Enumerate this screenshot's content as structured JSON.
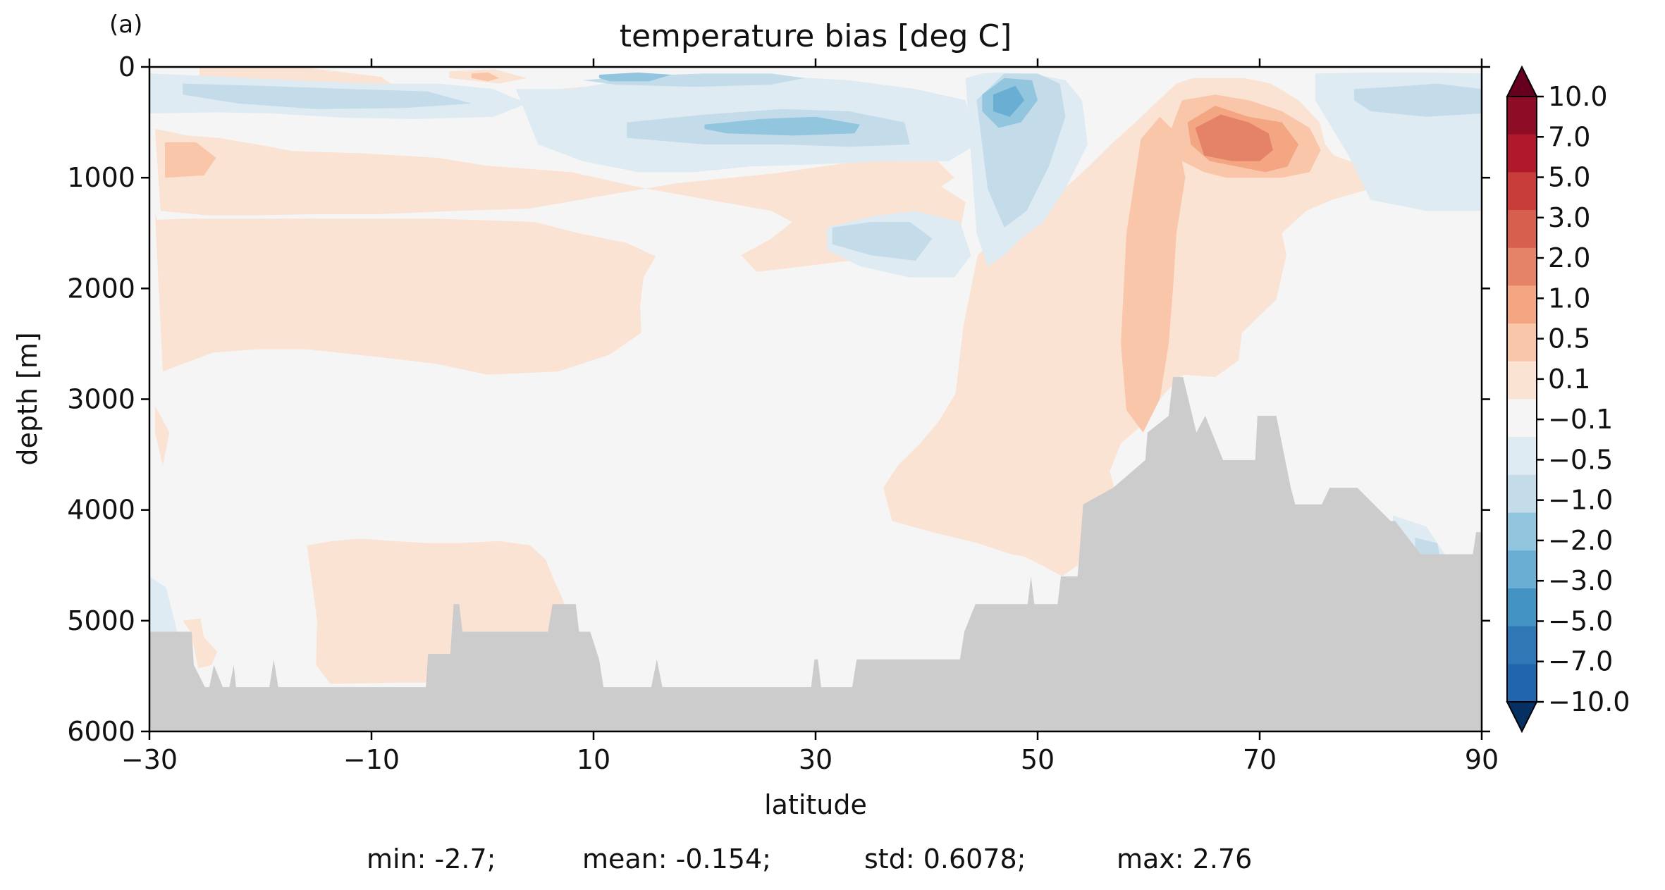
{
  "panel_label": "(a)",
  "chart_data": {
    "type": "heatmap",
    "title": "temperature bias [deg C]",
    "xlabel": "latitude",
    "ylabel": "depth [m]",
    "xlim": [
      -30,
      90
    ],
    "ylim": [
      6000,
      0
    ],
    "xticks": [
      -30,
      -10,
      10,
      30,
      50,
      70,
      90
    ],
    "xtick_labels": [
      "−30",
      "−10",
      "10",
      "30",
      "50",
      "70",
      "90"
    ],
    "yticks": [
      0,
      1000,
      2000,
      3000,
      4000,
      5000,
      6000
    ],
    "ytick_labels": [
      "0",
      "1000",
      "2000",
      "3000",
      "4000",
      "5000",
      "6000"
    ],
    "colorbar": {
      "extend": "both",
      "levels": [
        -10,
        -7,
        -5,
        -3,
        -2,
        -1,
        -0.5,
        -0.1,
        0.1,
        0.5,
        1,
        2,
        3,
        5,
        7,
        10
      ],
      "labels": [
        "10.0",
        "7.0",
        "5.0",
        "3.0",
        "2.0",
        "1.0",
        "0.5",
        "0.1",
        "−0.1",
        "−0.5",
        "−1.0",
        "−2.0",
        "−3.0",
        "−5.0",
        "−7.0",
        "−10.0"
      ],
      "colors_top_to_bottom": [
        "#67001f",
        "#8e0d26",
        "#b2182b",
        "#c83c3a",
        "#d6604d",
        "#e58368",
        "#f4a582",
        "#f9c6a9",
        "#fbe3d4",
        "#f5f5f5",
        "#deebf2",
        "#c4dbea",
        "#92c5de",
        "#6aaed3",
        "#4393c3",
        "#2f78b5",
        "#2166ac",
        "#053061"
      ],
      "land_color": "#cccccc"
    },
    "bias_regions": [
      {
        "level": 0.3,
        "lat": [
          -29.5,
          -28.4,
          -26.6,
          -23.8,
          -20.3,
          -17.1,
          -10.8,
          -4.0,
          0.2,
          8.0,
          14.8,
          20.4,
          26.0,
          27.9,
          26.0,
          23.3,
          24.7,
          37.3,
          42.9,
          43.5,
          40.1,
          40.7,
          38.8,
          35.7,
          33.2,
          26.4,
          17.5,
          10.5,
          4.1,
          -2.5,
          -9.3,
          -15.1,
          -20.4,
          -24.8,
          -29.0
        ],
        "depth": [
          560,
          580,
          620,
          640,
          700,
          760,
          780,
          820,
          890,
          950,
          1100,
          1200,
          1300,
          1400,
          1550,
          1700,
          1850,
          1700,
          1550,
          1220,
          1000,
          880,
          860,
          840,
          860,
          960,
          1050,
          1170,
          1280,
          1300,
          1330,
          1330,
          1340,
          1340,
          1300
        ]
      },
      {
        "level": 0.3,
        "lat": [
          -29.5,
          -29.3,
          -26.7,
          -21.2,
          -15.5,
          -10.8,
          -4.7,
          -0.9,
          4.7,
          8.6,
          13.0,
          15.6,
          14.5,
          14.2,
          14.3,
          11.4,
          6.8,
          0.5,
          -4.2,
          -9.3,
          -15.8,
          -20.4,
          -24.3,
          -28.8
        ],
        "depth": [
          1320,
          1380,
          1370,
          1370,
          1370,
          1370,
          1370,
          1380,
          1400,
          1500,
          1590,
          1710,
          1900,
          2150,
          2400,
          2600,
          2750,
          2780,
          2680,
          2620,
          2550,
          2550,
          2580,
          2750
        ]
      },
      {
        "level": 0.3,
        "lat": [
          44.6,
          46.6,
          49.1,
          52.4,
          54.6,
          56.6,
          58.8,
          60.9,
          62.5,
          64.0,
          66.6,
          68.6,
          71.0,
          73.5,
          75.4,
          75.9,
          76.7,
          78.1,
          80.0,
          80.6,
          80.0,
          76.5,
          74.2,
          72.0,
          72.4,
          71.5,
          68.4,
          68.1,
          66.0,
          63.2,
          62.8,
          61.0,
          59.8,
          57.5,
          56.5,
          56.9,
          56.0,
          54.9,
          53.9,
          53.6,
          52.2,
          50.4,
          48.8,
          47.6,
          44.6,
          40.5,
          36.9,
          36.1,
          37.4,
          39.4,
          41.1,
          42.6,
          43.3,
          44.6
        ],
        "depth": [
          1700,
          1500,
          1300,
          1100,
          900,
          700,
          500,
          300,
          150,
          100,
          100,
          100,
          150,
          300,
          500,
          700,
          800,
          850,
          900,
          1000,
          1100,
          1200,
          1300,
          1500,
          1700,
          2100,
          2400,
          2650,
          2800,
          2780,
          2800,
          3000,
          3200,
          3400,
          3650,
          3800,
          4100,
          4200,
          4350,
          4500,
          4600,
          4500,
          4420,
          4400,
          4300,
          4200,
          4100,
          3800,
          3600,
          3400,
          3200,
          2950,
          2350,
          1700
        ]
      },
      {
        "level": 0.3,
        "lat": [
          -15.8,
          -13.5,
          -11.0,
          -8.1,
          -4.9,
          -2.1,
          1.5,
          4.3,
          5.7,
          6.3,
          7.2,
          8.1,
          8.0,
          -1.8,
          -8.0,
          -13.7,
          -15.0,
          -14.9,
          -15.8
        ],
        "depth": [
          4320,
          4280,
          4260,
          4280,
          4300,
          4300,
          4280,
          4320,
          4450,
          4600,
          4800,
          5100,
          5560,
          5560,
          5560,
          5570,
          5400,
          5000,
          4320
        ]
      },
      {
        "level": 0.3,
        "lat": [
          -27.0,
          -25.4,
          -25.1,
          -23.9,
          -24.4,
          -25.6,
          -26.3
        ],
        "depth": [
          5000,
          4980,
          5150,
          5280,
          5400,
          5430,
          5100
        ]
      },
      {
        "level": 0.3,
        "lat": [
          -29.5,
          -28.2,
          -28.8,
          -29.5
        ],
        "depth": [
          3060,
          3300,
          3600,
          3300
        ]
      },
      {
        "level": 0.3,
        "lat": [
          -25.5,
          -20.8,
          -16.3,
          -13.2,
          -9.1,
          -7.6,
          -14.2,
          -20.4,
          -25.5
        ],
        "depth": [
          0,
          0,
          0,
          40,
          90,
          200,
          210,
          180,
          120
        ]
      },
      {
        "level": 0.3,
        "lat": [
          -29.2,
          -25.0,
          -23.6,
          -26.2,
          -29.2
        ],
        "depth": [
          650,
          650,
          780,
          990,
          1000
        ]
      },
      {
        "level": 0.75,
        "lat": [
          -28.6,
          -25.8,
          -24.0,
          -25.1,
          -28.6
        ],
        "depth": [
          680,
          680,
          820,
          980,
          1000
        ]
      },
      {
        "level": 0.75,
        "lat": [
          59.3,
          61.0,
          62.5,
          63.3,
          62.5,
          62.2,
          61.8,
          61.0,
          59.5,
          58.0,
          57.5,
          58.0,
          59.3
        ],
        "depth": [
          650,
          450,
          600,
          1000,
          1500,
          2000,
          2500,
          3000,
          3300,
          3100,
          2500,
          1500,
          650
        ]
      },
      {
        "level": 0.75,
        "lat": [
          61.5,
          63.0,
          66.0,
          69.0,
          72.0,
          74.5,
          75.5,
          74.5,
          72.0,
          70.0,
          67.0,
          65.0,
          63.0,
          61.5
        ],
        "depth": [
          700,
          300,
          250,
          300,
          400,
          550,
          750,
          950,
          1000,
          1000,
          1000,
          950,
          850,
          700
        ]
      },
      {
        "level": 1.5,
        "lat": [
          63.5,
          66.0,
          69.0,
          72.0,
          73.5,
          72.5,
          70.5,
          68.0,
          65.5,
          63.8,
          63.5
        ],
        "depth": [
          500,
          350,
          450,
          500,
          700,
          900,
          950,
          900,
          850,
          700,
          500
        ]
      },
      {
        "level": 2.5,
        "lat": [
          64.2,
          66.5,
          69.0,
          70.8,
          71.2,
          70.0,
          67.5,
          65.0,
          64.2
        ],
        "depth": [
          550,
          430,
          500,
          600,
          750,
          850,
          850,
          800,
          550
        ]
      },
      {
        "level": 0.3,
        "lat": [
          37.0,
          41.0,
          42.5,
          41.0,
          37.5,
          36.5,
          37.0
        ],
        "depth": [
          850,
          850,
          1000,
          1100,
          1150,
          1000,
          850
        ]
      },
      {
        "level": 0.3,
        "lat": [
          -3.0,
          1.0,
          4.0,
          1.5,
          -3.0
        ],
        "depth": [
          40,
          20,
          100,
          150,
          100
        ]
      },
      {
        "level": 0.75,
        "lat": [
          -1.0,
          0.5,
          1.5,
          0.5,
          -1.0
        ],
        "depth": [
          60,
          50,
          100,
          130,
          100
        ]
      },
      {
        "level": 0.3,
        "lat": [
          21.0,
          24.0,
          26.5,
          26.0,
          22.5,
          21.0
        ],
        "depth": [
          200,
          120,
          150,
          320,
          350,
          260
        ]
      },
      {
        "level": 0.3,
        "lat": [
          7.0,
          9.0,
          10.5,
          9.5,
          7.0
        ],
        "depth": [
          200,
          180,
          250,
          330,
          270
        ]
      },
      {
        "level": -0.3,
        "lat": [
          -30.0,
          -25.0,
          -17.0,
          -10.0,
          -4.0,
          1.0,
          4.0,
          1.0,
          -6.0,
          -12.0,
          -19.0,
          -24.0,
          -30.0
        ],
        "depth": [
          60,
          80,
          120,
          150,
          150,
          200,
          330,
          450,
          470,
          460,
          420,
          410,
          420
        ]
      },
      {
        "level": -0.3,
        "lat": [
          3.0,
          8.0,
          14.0,
          20.0,
          26.0,
          33.0,
          39.0,
          43.5,
          44.5,
          42.0,
          36.5,
          30.0,
          24.0,
          19.0,
          14.0,
          9.0,
          5.0,
          3.0
        ],
        "depth": [
          200,
          200,
          100,
          60,
          80,
          120,
          200,
          300,
          700,
          850,
          850,
          880,
          900,
          950,
          950,
          850,
          700,
          200
        ]
      },
      {
        "level": -0.3,
        "lat": [
          43.5,
          45.0,
          46.5,
          48.5,
          50.5,
          52.5,
          54.0,
          54.5,
          52.5,
          50.5,
          48.5,
          47.0,
          45.5,
          44.5,
          43.5
        ],
        "depth": [
          100,
          60,
          50,
          60,
          80,
          120,
          300,
          700,
          1100,
          1400,
          1550,
          1700,
          1800,
          1500,
          100
        ]
      },
      {
        "level": -0.3,
        "lat": [
          31.0,
          35.0,
          39.0,
          43.0,
          44.0,
          42.5,
          38.5,
          34.0,
          31.0
        ],
        "depth": [
          1450,
          1350,
          1300,
          1400,
          1700,
          1900,
          1900,
          1800,
          1650
        ]
      },
      {
        "level": -0.3,
        "lat": [
          75.0,
          80.0,
          85.0,
          90.0,
          90.0,
          85.0,
          80.0,
          78.0,
          75.0
        ],
        "depth": [
          60,
          50,
          50,
          60,
          1300,
          1300,
          1200,
          800,
          300
        ]
      },
      {
        "level": -0.3,
        "lat": [
          -30.0,
          -28.5,
          -27.5,
          -30.0
        ],
        "depth": [
          4600,
          4700,
          5100,
          5100
        ]
      },
      {
        "level": -0.3,
        "lat": [
          82.0,
          85.0,
          87.0,
          85.5,
          82.0
        ],
        "depth": [
          4050,
          4150,
          4450,
          4550,
          4400
        ]
      },
      {
        "level": -0.75,
        "lat": [
          -27.0,
          -20.0,
          -12.0,
          -5.0,
          -1.0,
          -7.0,
          -15.0,
          -22.0,
          -27.0
        ],
        "depth": [
          150,
          170,
          200,
          220,
          330,
          370,
          380,
          330,
          250
        ]
      },
      {
        "level": -0.75,
        "lat": [
          13.0,
          20.0,
          27.0,
          33.0,
          38.0,
          38.5,
          33.0,
          27.0,
          20.0,
          13.0
        ],
        "depth": [
          500,
          430,
          380,
          400,
          500,
          700,
          720,
          700,
          700,
          640
        ]
      },
      {
        "level": -0.75,
        "lat": [
          9.0,
          14.0,
          20.0,
          26.0,
          29.0,
          26.0,
          19.0,
          12.0,
          9.0
        ],
        "depth": [
          120,
          80,
          60,
          60,
          100,
          160,
          180,
          160,
          120
        ]
      },
      {
        "level": -0.75,
        "lat": [
          44.5,
          47.0,
          50.0,
          52.0,
          52.5,
          51.0,
          49.0,
          47.0,
          45.5,
          44.5
        ],
        "depth": [
          300,
          60,
          60,
          150,
          450,
          900,
          1300,
          1450,
          1100,
          300
        ]
      },
      {
        "level": -0.75,
        "lat": [
          31.5,
          35.0,
          38.5,
          40.5,
          39.0,
          35.0,
          31.5
        ],
        "depth": [
          1450,
          1400,
          1400,
          1550,
          1750,
          1700,
          1600
        ]
      },
      {
        "level": -0.75,
        "lat": [
          78.5,
          82.0,
          86.0,
          90.0,
          90.0,
          85.0,
          80.0,
          78.5
        ],
        "depth": [
          200,
          180,
          150,
          200,
          420,
          450,
          400,
          300
        ]
      },
      {
        "level": -0.75,
        "lat": [
          84.0,
          86.0,
          86.5,
          85.0,
          84.0
        ],
        "depth": [
          4250,
          4300,
          4550,
          4550,
          4400
        ]
      },
      {
        "level": -1.5,
        "lat": [
          20.0,
          25.0,
          30.0,
          34.0,
          33.5,
          28.0,
          22.0,
          20.0
        ],
        "depth": [
          520,
          470,
          450,
          520,
          600,
          620,
          600,
          560
        ]
      },
      {
        "level": -1.5,
        "lat": [
          45.0,
          47.0,
          49.5,
          50.0,
          48.5,
          46.5,
          45.0
        ],
        "depth": [
          250,
          100,
          120,
          300,
          500,
          550,
          400
        ]
      },
      {
        "level": -2.5,
        "lat": [
          46.0,
          48.0,
          48.8,
          47.5,
          46.0
        ],
        "depth": [
          250,
          170,
          300,
          450,
          400
        ]
      },
      {
        "level": -1.5,
        "lat": [
          10.5,
          14.0,
          17.0,
          15.0,
          11.5,
          10.5
        ],
        "depth": [
          70,
          50,
          70,
          130,
          130,
          100
        ]
      }
    ],
    "bathymetry": {
      "lat": [
        -30,
        -29,
        -26.2,
        -26,
        -25,
        -24.6,
        -24.2,
        -23.4,
        -22.8,
        -22.4,
        -22.2,
        -21.8,
        -19.2,
        -18.8,
        -18.4,
        -18,
        -5.1,
        -4.9,
        -2.9,
        -2.6,
        -2.1,
        -1.8,
        5.9,
        6.3,
        8.4,
        8.7,
        9.3,
        9.7,
        10.5,
        10.9,
        15.2,
        15.7,
        16.2,
        21.2,
        24.8,
        29.6,
        29.9,
        30.2,
        30.5,
        33.3,
        33.7,
        36.6,
        43,
        43.4,
        44.4,
        49.1,
        49.4,
        49.7,
        50.3,
        51.8,
        52.1,
        53.6,
        54.1,
        56.8,
        59.7,
        59.9,
        61.8,
        62.2,
        63.1,
        64.3,
        65.1,
        66.7,
        67.1,
        69.6,
        69.8,
        71.5,
        72.8,
        73.2,
        75.6,
        76.3,
        78.8,
        81.8,
        82.2,
        84.5,
        89.2,
        89.5,
        90
      ],
      "depth": [
        5100,
        5100,
        5100,
        5400,
        5600,
        5600,
        5400,
        5600,
        5600,
        5400,
        5600,
        5600,
        5600,
        5350,
        5600,
        5600,
        5600,
        5300,
        5300,
        4850,
        4850,
        5100,
        5100,
        4850,
        4850,
        5100,
        5100,
        5100,
        5350,
        5600,
        5600,
        5350,
        5600,
        5600,
        5600,
        5600,
        5350,
        5350,
        5600,
        5600,
        5350,
        5350,
        5350,
        5100,
        4850,
        4850,
        4600,
        4850,
        4850,
        4850,
        4600,
        4600,
        3950,
        3800,
        3550,
        3300,
        3150,
        2800,
        2800,
        3300,
        3150,
        3550,
        3550,
        3550,
        3150,
        3150,
        3800,
        3950,
        3950,
        3800,
        3800,
        4100,
        4100,
        4400,
        4400,
        4200,
        4200
      ]
    }
  },
  "stats": {
    "min": "min: -2.7;",
    "mean": "mean: -0.154;",
    "std": "std: 0.6078;",
    "max": "max: 2.76"
  }
}
